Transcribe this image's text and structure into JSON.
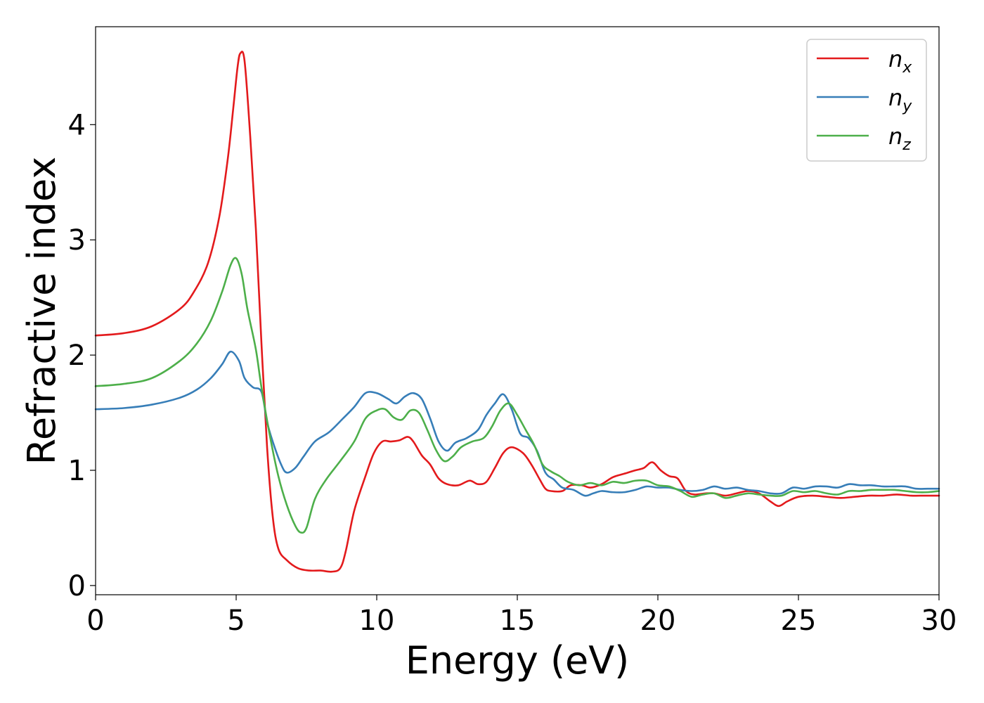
{
  "chart_data": {
    "type": "line",
    "title": "",
    "xlabel": "Energy (eV)",
    "ylabel": "Refractive index",
    "xlim": [
      0,
      30
    ],
    "ylim": [
      -0.08,
      4.85
    ],
    "xticks": [
      0,
      5,
      10,
      15,
      20,
      25,
      30
    ],
    "yticks": [
      0,
      1,
      2,
      3,
      4
    ],
    "grid": false,
    "legend_position": "top-right",
    "series": [
      {
        "name": "n_x",
        "label_main": "n",
        "label_sub": "x",
        "color": "#e31a1c",
        "points": [
          [
            0,
            2.17
          ],
          [
            1,
            2.19
          ],
          [
            2,
            2.25
          ],
          [
            3,
            2.4
          ],
          [
            3.5,
            2.55
          ],
          [
            4,
            2.8
          ],
          [
            4.4,
            3.2
          ],
          [
            4.7,
            3.7
          ],
          [
            4.9,
            4.15
          ],
          [
            5.05,
            4.5
          ],
          [
            5.15,
            4.62
          ],
          [
            5.3,
            4.55
          ],
          [
            5.5,
            3.9
          ],
          [
            5.7,
            3.1
          ],
          [
            5.9,
            2.1
          ],
          [
            6.1,
            1.2
          ],
          [
            6.3,
            0.6
          ],
          [
            6.5,
            0.32
          ],
          [
            6.8,
            0.22
          ],
          [
            7.2,
            0.15
          ],
          [
            7.6,
            0.13
          ],
          [
            8,
            0.13
          ],
          [
            8.4,
            0.12
          ],
          [
            8.7,
            0.15
          ],
          [
            8.9,
            0.3
          ],
          [
            9.2,
            0.65
          ],
          [
            9.6,
            0.95
          ],
          [
            9.9,
            1.15
          ],
          [
            10.2,
            1.25
          ],
          [
            10.5,
            1.25
          ],
          [
            10.8,
            1.26
          ],
          [
            11.1,
            1.29
          ],
          [
            11.3,
            1.25
          ],
          [
            11.6,
            1.13
          ],
          [
            11.9,
            1.05
          ],
          [
            12.2,
            0.93
          ],
          [
            12.5,
            0.88
          ],
          [
            12.9,
            0.87
          ],
          [
            13.3,
            0.91
          ],
          [
            13.6,
            0.88
          ],
          [
            13.9,
            0.9
          ],
          [
            14.2,
            1.02
          ],
          [
            14.5,
            1.15
          ],
          [
            14.8,
            1.2
          ],
          [
            15.2,
            1.15
          ],
          [
            15.5,
            1.05
          ],
          [
            15.8,
            0.92
          ],
          [
            16,
            0.84
          ],
          [
            16.2,
            0.82
          ],
          [
            16.6,
            0.82
          ],
          [
            16.9,
            0.87
          ],
          [
            17.3,
            0.87
          ],
          [
            17.6,
            0.85
          ],
          [
            18,
            0.88
          ],
          [
            18.4,
            0.94
          ],
          [
            18.8,
            0.97
          ],
          [
            19.2,
            1
          ],
          [
            19.5,
            1.02
          ],
          [
            19.8,
            1.07
          ],
          [
            20.1,
            1
          ],
          [
            20.4,
            0.95
          ],
          [
            20.7,
            0.93
          ],
          [
            21,
            0.82
          ],
          [
            21.3,
            0.79
          ],
          [
            21.7,
            0.8
          ],
          [
            22,
            0.8
          ],
          [
            22.4,
            0.78
          ],
          [
            22.8,
            0.8
          ],
          [
            23.2,
            0.82
          ],
          [
            23.6,
            0.8
          ],
          [
            24,
            0.73
          ],
          [
            24.3,
            0.69
          ],
          [
            24.6,
            0.73
          ],
          [
            25,
            0.77
          ],
          [
            25.5,
            0.78
          ],
          [
            26,
            0.77
          ],
          [
            26.5,
            0.76
          ],
          [
            27,
            0.77
          ],
          [
            27.5,
            0.78
          ],
          [
            28,
            0.78
          ],
          [
            28.5,
            0.79
          ],
          [
            29,
            0.78
          ],
          [
            29.5,
            0.78
          ],
          [
            30,
            0.78
          ]
        ]
      },
      {
        "name": "n_y",
        "label_main": "n",
        "label_sub": "y",
        "color": "#377eb8",
        "points": [
          [
            0,
            1.53
          ],
          [
            1,
            1.54
          ],
          [
            2,
            1.57
          ],
          [
            3,
            1.63
          ],
          [
            3.6,
            1.7
          ],
          [
            4.1,
            1.8
          ],
          [
            4.5,
            1.92
          ],
          [
            4.8,
            2.03
          ],
          [
            5.1,
            1.95
          ],
          [
            5.3,
            1.8
          ],
          [
            5.6,
            1.72
          ],
          [
            5.9,
            1.68
          ],
          [
            6.1,
            1.42
          ],
          [
            6.3,
            1.25
          ],
          [
            6.6,
            1.05
          ],
          [
            6.8,
            0.98
          ],
          [
            7.1,
            1.02
          ],
          [
            7.4,
            1.12
          ],
          [
            7.8,
            1.25
          ],
          [
            8.3,
            1.33
          ],
          [
            8.8,
            1.45
          ],
          [
            9.2,
            1.55
          ],
          [
            9.6,
            1.67
          ],
          [
            10,
            1.67
          ],
          [
            10.4,
            1.62
          ],
          [
            10.7,
            1.58
          ],
          [
            11,
            1.64
          ],
          [
            11.3,
            1.67
          ],
          [
            11.6,
            1.62
          ],
          [
            11.9,
            1.45
          ],
          [
            12.2,
            1.25
          ],
          [
            12.5,
            1.17
          ],
          [
            12.8,
            1.24
          ],
          [
            13.2,
            1.28
          ],
          [
            13.6,
            1.35
          ],
          [
            13.9,
            1.48
          ],
          [
            14.2,
            1.58
          ],
          [
            14.5,
            1.66
          ],
          [
            14.8,
            1.53
          ],
          [
            15.1,
            1.32
          ],
          [
            15.4,
            1.28
          ],
          [
            15.7,
            1.17
          ],
          [
            16,
            0.98
          ],
          [
            16.3,
            0.92
          ],
          [
            16.6,
            0.85
          ],
          [
            17,
            0.83
          ],
          [
            17.4,
            0.78
          ],
          [
            17.7,
            0.8
          ],
          [
            18,
            0.82
          ],
          [
            18.4,
            0.81
          ],
          [
            18.8,
            0.81
          ],
          [
            19.2,
            0.83
          ],
          [
            19.6,
            0.86
          ],
          [
            20,
            0.85
          ],
          [
            20.4,
            0.85
          ],
          [
            20.8,
            0.83
          ],
          [
            21.2,
            0.82
          ],
          [
            21.6,
            0.83
          ],
          [
            22,
            0.86
          ],
          [
            22.4,
            0.84
          ],
          [
            22.8,
            0.85
          ],
          [
            23.2,
            0.83
          ],
          [
            23.6,
            0.82
          ],
          [
            24,
            0.8
          ],
          [
            24.4,
            0.8
          ],
          [
            24.8,
            0.85
          ],
          [
            25.2,
            0.84
          ],
          [
            25.6,
            0.86
          ],
          [
            26,
            0.86
          ],
          [
            26.4,
            0.85
          ],
          [
            26.8,
            0.88
          ],
          [
            27.2,
            0.87
          ],
          [
            27.6,
            0.87
          ],
          [
            28,
            0.86
          ],
          [
            28.4,
            0.86
          ],
          [
            28.8,
            0.86
          ],
          [
            29.2,
            0.84
          ],
          [
            29.6,
            0.84
          ],
          [
            30,
            0.84
          ]
        ]
      },
      {
        "name": "n_z",
        "label_main": "n",
        "label_sub": "z",
        "color": "#4daf4a",
        "points": [
          [
            0,
            1.73
          ],
          [
            1,
            1.75
          ],
          [
            2,
            1.8
          ],
          [
            3,
            1.95
          ],
          [
            3.6,
            2.1
          ],
          [
            4.1,
            2.3
          ],
          [
            4.5,
            2.55
          ],
          [
            4.8,
            2.78
          ],
          [
            5,
            2.84
          ],
          [
            5.2,
            2.7
          ],
          [
            5.4,
            2.4
          ],
          [
            5.7,
            2.05
          ],
          [
            5.9,
            1.72
          ],
          [
            6.2,
            1.3
          ],
          [
            6.5,
            0.95
          ],
          [
            6.8,
            0.7
          ],
          [
            7.1,
            0.52
          ],
          [
            7.3,
            0.46
          ],
          [
            7.5,
            0.5
          ],
          [
            7.8,
            0.75
          ],
          [
            8.2,
            0.92
          ],
          [
            8.7,
            1.08
          ],
          [
            9.2,
            1.25
          ],
          [
            9.6,
            1.45
          ],
          [
            10,
            1.52
          ],
          [
            10.3,
            1.53
          ],
          [
            10.6,
            1.46
          ],
          [
            10.9,
            1.44
          ],
          [
            11.2,
            1.52
          ],
          [
            11.5,
            1.5
          ],
          [
            11.8,
            1.35
          ],
          [
            12.1,
            1.18
          ],
          [
            12.4,
            1.08
          ],
          [
            12.7,
            1.12
          ],
          [
            13,
            1.2
          ],
          [
            13.4,
            1.25
          ],
          [
            13.8,
            1.28
          ],
          [
            14.1,
            1.38
          ],
          [
            14.4,
            1.52
          ],
          [
            14.7,
            1.58
          ],
          [
            15,
            1.48
          ],
          [
            15.3,
            1.35
          ],
          [
            15.6,
            1.22
          ],
          [
            15.9,
            1.05
          ],
          [
            16.2,
            0.99
          ],
          [
            16.5,
            0.95
          ],
          [
            16.8,
            0.9
          ],
          [
            17.2,
            0.87
          ],
          [
            17.6,
            0.89
          ],
          [
            18,
            0.87
          ],
          [
            18.4,
            0.9
          ],
          [
            18.8,
            0.89
          ],
          [
            19.2,
            0.91
          ],
          [
            19.6,
            0.91
          ],
          [
            20,
            0.87
          ],
          [
            20.4,
            0.86
          ],
          [
            20.8,
            0.82
          ],
          [
            21.2,
            0.77
          ],
          [
            21.6,
            0.79
          ],
          [
            22,
            0.8
          ],
          [
            22.4,
            0.76
          ],
          [
            22.8,
            0.78
          ],
          [
            23.2,
            0.8
          ],
          [
            23.6,
            0.79
          ],
          [
            24,
            0.78
          ],
          [
            24.4,
            0.78
          ],
          [
            24.8,
            0.82
          ],
          [
            25.2,
            0.81
          ],
          [
            25.6,
            0.82
          ],
          [
            26,
            0.8
          ],
          [
            26.4,
            0.79
          ],
          [
            26.8,
            0.82
          ],
          [
            27.2,
            0.82
          ],
          [
            27.6,
            0.83
          ],
          [
            28,
            0.83
          ],
          [
            28.4,
            0.83
          ],
          [
            28.8,
            0.82
          ],
          [
            29.2,
            0.81
          ],
          [
            29.6,
            0.81
          ],
          [
            30,
            0.82
          ]
        ]
      }
    ]
  }
}
